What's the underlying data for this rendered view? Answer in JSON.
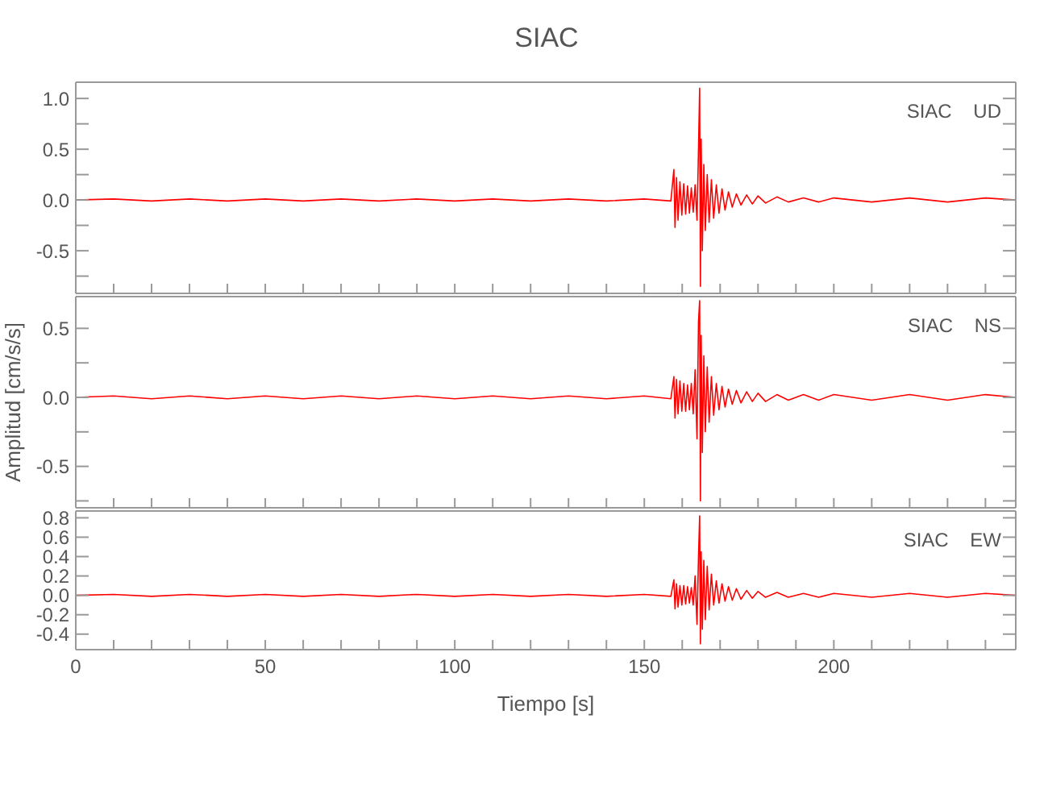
{
  "chart_data": [
    {
      "type": "line",
      "title": "SIAC",
      "xlim": [
        0,
        248
      ],
      "ylim": [
        -0.92,
        1.16
      ],
      "tick_labels": "y",
      "marker": "none",
      "line_style": "solid",
      "xticks": [
        0,
        {
          "value": 10,
          "label": null
        },
        {
          "value": 20,
          "label": null
        },
        {
          "value": 30,
          "label": null
        },
        {
          "value": 40,
          "label": null
        },
        50,
        {
          "value": 60,
          "label": null
        },
        {
          "value": 70,
          "label": null
        },
        {
          "value": 80,
          "label": null
        },
        {
          "value": 90,
          "label": null
        },
        100,
        {
          "value": 110,
          "label": null
        },
        {
          "value": 120,
          "label": null
        },
        {
          "value": 130,
          "label": null
        },
        {
          "value": 140,
          "label": null
        },
        150,
        {
          "value": 160,
          "label": null
        },
        {
          "value": 170,
          "label": null
        },
        {
          "value": 180,
          "label": null
        },
        {
          "value": 190,
          "label": null
        },
        200,
        {
          "value": 210,
          "label": null
        },
        {
          "value": 220,
          "label": null
        },
        {
          "value": 230,
          "label": null
        },
        {
          "value": 240,
          "label": null
        }
      ],
      "yticks": [
        {
          "value": -0.75,
          "label": null
        },
        {
          "value": -0.5,
          "label": "-0.5"
        },
        {
          "value": -0.25,
          "label": null
        },
        {
          "value": 0,
          "label": "0.0"
        },
        {
          "value": 0.25,
          "label": null
        },
        {
          "value": 0.5,
          "label": "0.5"
        },
        {
          "value": 0.75,
          "label": null
        },
        {
          "value": 1,
          "label": "1.0"
        }
      ],
      "series": [
        {
          "name": "SIAC UD",
          "color": "#ff0000",
          "x": [
            0,
            10,
            20,
            30,
            40,
            50,
            60,
            70,
            80,
            90,
            100,
            110,
            120,
            130,
            140,
            150,
            157,
            157.8,
            158.1,
            158.5,
            158.9,
            159.4,
            159.9,
            160.4,
            160.9,
            161.4,
            161.9,
            162.4,
            162.9,
            163.4,
            163.9,
            164.3,
            164.6,
            164.8,
            165.0,
            165.3,
            165.7,
            166.1,
            166.6,
            167.1,
            167.7,
            168.3,
            169,
            169.7,
            170.5,
            171.3,
            172.2,
            173.2,
            174.3,
            175.5,
            177,
            178.5,
            180,
            182,
            185,
            188,
            192,
            196,
            200,
            210,
            220,
            230,
            240,
            248
          ],
          "values": [
            0,
            0.01,
            -0.01,
            0.01,
            -0.01,
            0.01,
            -0.01,
            0.01,
            -0.01,
            0.01,
            -0.01,
            0.01,
            -0.01,
            0.01,
            -0.01,
            0.01,
            -0.01,
            0.3,
            -0.27,
            0.22,
            -0.2,
            0.18,
            -0.15,
            0.16,
            -0.14,
            0.14,
            -0.13,
            0.12,
            -0.12,
            0.15,
            -0.2,
            0.5,
            1.1,
            -0.85,
            0.6,
            -0.5,
            0.35,
            -0.3,
            0.25,
            -0.22,
            0.2,
            -0.18,
            0.15,
            -0.13,
            0.11,
            -0.1,
            0.08,
            -0.07,
            0.06,
            -0.05,
            0.05,
            -0.04,
            0.04,
            -0.03,
            0.03,
            -0.02,
            0.02,
            -0.02,
            0.02,
            -0.02,
            0.02,
            -0.02,
            0.02,
            0
          ]
        }
      ]
    },
    {
      "type": "line",
      "ylabel": "Amplitud [cm/s/s]",
      "xlim": [
        0,
        248
      ],
      "ylim": [
        -0.8,
        0.73
      ],
      "tick_labels": "y",
      "marker": "none",
      "line_style": "solid",
      "xticks": [
        0,
        {
          "value": 10,
          "label": null
        },
        {
          "value": 20,
          "label": null
        },
        {
          "value": 30,
          "label": null
        },
        {
          "value": 40,
          "label": null
        },
        50,
        {
          "value": 60,
          "label": null
        },
        {
          "value": 70,
          "label": null
        },
        {
          "value": 80,
          "label": null
        },
        {
          "value": 90,
          "label": null
        },
        100,
        {
          "value": 110,
          "label": null
        },
        {
          "value": 120,
          "label": null
        },
        {
          "value": 130,
          "label": null
        },
        {
          "value": 140,
          "label": null
        },
        150,
        {
          "value": 160,
          "label": null
        },
        {
          "value": 170,
          "label": null
        },
        {
          "value": 180,
          "label": null
        },
        {
          "value": 190,
          "label": null
        },
        200,
        {
          "value": 210,
          "label": null
        },
        {
          "value": 220,
          "label": null
        },
        {
          "value": 230,
          "label": null
        },
        {
          "value": 240,
          "label": null
        }
      ],
      "yticks": [
        {
          "value": -0.75,
          "label": null
        },
        {
          "value": -0.5,
          "label": "-0.5"
        },
        {
          "value": -0.25,
          "label": null
        },
        {
          "value": 0,
          "label": "0.0"
        },
        {
          "value": 0.25,
          "label": null
        },
        {
          "value": 0.5,
          "label": "0.5"
        }
      ],
      "series": [
        {
          "name": "SIAC NS",
          "color": "#ff0000",
          "x": [
            0,
            10,
            20,
            30,
            40,
            50,
            60,
            70,
            80,
            90,
            100,
            110,
            120,
            130,
            140,
            150,
            157,
            157.8,
            158.1,
            158.5,
            158.9,
            159.4,
            159.9,
            160.4,
            160.9,
            161.4,
            161.9,
            162.4,
            162.9,
            163.4,
            163.9,
            164.3,
            164.6,
            164.8,
            165.0,
            165.3,
            165.7,
            166.1,
            166.6,
            167.1,
            167.7,
            168.3,
            169,
            169.7,
            170.5,
            171.3,
            172.2,
            173.2,
            174.3,
            175.5,
            177,
            178.5,
            180,
            182,
            185,
            188,
            192,
            196,
            200,
            210,
            220,
            230,
            240,
            248
          ],
          "values": [
            0,
            0.01,
            -0.01,
            0.01,
            -0.01,
            0.01,
            -0.01,
            0.01,
            -0.01,
            0.01,
            -0.01,
            0.01,
            -0.01,
            0.01,
            -0.01,
            0.01,
            -0.01,
            0.15,
            -0.15,
            0.13,
            -0.12,
            0.12,
            -0.1,
            0.1,
            -0.1,
            0.09,
            -0.09,
            0.1,
            -0.12,
            0.2,
            -0.3,
            0.55,
            0.7,
            -0.75,
            0.45,
            -0.4,
            0.3,
            -0.25,
            0.22,
            -0.18,
            0.15,
            -0.13,
            0.1,
            -0.09,
            0.08,
            -0.07,
            0.06,
            -0.05,
            0.05,
            -0.04,
            0.04,
            -0.03,
            0.03,
            -0.03,
            0.02,
            -0.02,
            0.02,
            -0.02,
            0.02,
            -0.02,
            0.02,
            -0.02,
            0.02,
            0
          ]
        }
      ]
    },
    {
      "type": "line",
      "xlabel": "Tiempo [s]",
      "xlim": [
        0,
        248
      ],
      "ylim": [
        -0.56,
        0.87
      ],
      "marker": "none",
      "line_style": "solid",
      "xticks": [
        0,
        {
          "value": 10,
          "label": null
        },
        {
          "value": 20,
          "label": null
        },
        {
          "value": 30,
          "label": null
        },
        {
          "value": 40,
          "label": null
        },
        50,
        {
          "value": 60,
          "label": null
        },
        {
          "value": 70,
          "label": null
        },
        {
          "value": 80,
          "label": null
        },
        {
          "value": 90,
          "label": null
        },
        100,
        {
          "value": 110,
          "label": null
        },
        {
          "value": 120,
          "label": null
        },
        {
          "value": 130,
          "label": null
        },
        {
          "value": 140,
          "label": null
        },
        150,
        {
          "value": 160,
          "label": null
        },
        {
          "value": 170,
          "label": null
        },
        {
          "value": 180,
          "label": null
        },
        {
          "value": 190,
          "label": null
        },
        200,
        {
          "value": 210,
          "label": null
        },
        {
          "value": 220,
          "label": null
        },
        {
          "value": 230,
          "label": null
        },
        {
          "value": 240,
          "label": null
        }
      ],
      "yticks": [
        {
          "value": -0.4,
          "label": "-0.4"
        },
        {
          "value": -0.2,
          "label": "-0.2"
        },
        {
          "value": 0,
          "label": "0.0"
        },
        {
          "value": 0.2,
          "label": "0.2"
        },
        {
          "value": 0.4,
          "label": "0.4"
        },
        {
          "value": 0.6,
          "label": "0.6"
        },
        {
          "value": 0.8,
          "label": "0.8"
        }
      ],
      "series": [
        {
          "name": "SIAC EW",
          "color": "#ff0000",
          "x": [
            0,
            10,
            20,
            30,
            40,
            50,
            60,
            70,
            80,
            90,
            100,
            110,
            120,
            130,
            140,
            150,
            157,
            157.8,
            158.1,
            158.5,
            158.9,
            159.4,
            159.9,
            160.4,
            160.9,
            161.4,
            161.9,
            162.4,
            162.9,
            163.4,
            163.9,
            164.3,
            164.6,
            164.8,
            165.0,
            165.3,
            165.7,
            166.1,
            166.6,
            167.1,
            167.7,
            168.3,
            169,
            169.7,
            170.5,
            171.3,
            172.2,
            173.2,
            174.3,
            175.5,
            177,
            178.5,
            180,
            182,
            185,
            188,
            192,
            196,
            200,
            210,
            220,
            230,
            240,
            248
          ],
          "values": [
            0,
            0.01,
            -0.01,
            0.01,
            -0.01,
            0.01,
            -0.01,
            0.01,
            -0.01,
            0.01,
            -0.01,
            0.01,
            -0.01,
            0.01,
            -0.01,
            0.01,
            -0.01,
            0.16,
            -0.14,
            0.12,
            -0.12,
            0.1,
            -0.1,
            0.1,
            -0.09,
            0.09,
            -0.08,
            0.08,
            -0.1,
            0.2,
            -0.3,
            0.4,
            0.82,
            -0.5,
            0.45,
            -0.35,
            0.36,
            -0.25,
            0.3,
            -0.15,
            0.22,
            -0.1,
            0.15,
            -0.08,
            0.12,
            -0.06,
            0.09,
            -0.05,
            0.07,
            -0.04,
            0.05,
            -0.03,
            0.04,
            -0.02,
            0.03,
            -0.02,
            0.02,
            -0.02,
            0.02,
            -0.02,
            0.02,
            -0.02,
            0.02,
            0
          ]
        }
      ]
    }
  ]
}
